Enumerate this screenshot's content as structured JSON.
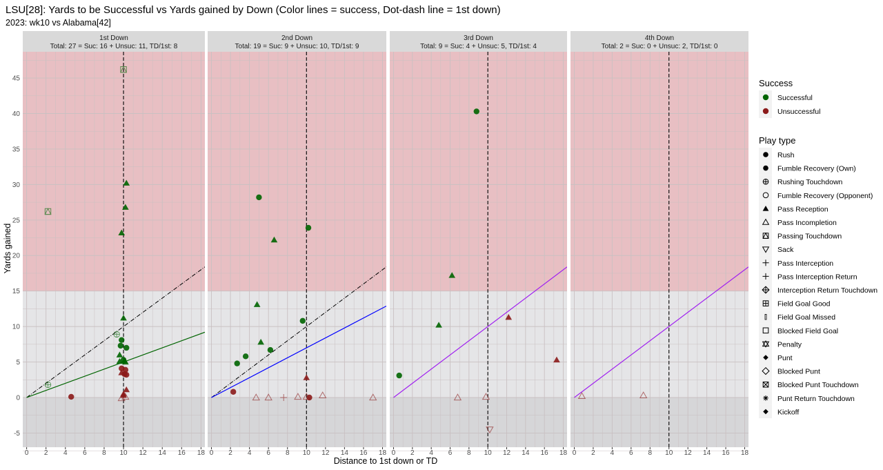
{
  "title": "LSU[28]: Yards to be Successful vs Yards gained by Down  (Color lines = success, Dot-dash line = 1st down)",
  "subtitle": "2023: wk10 vs Alabama[42]",
  "colors": {
    "successful": "#006400",
    "unsuccessful": "#8B1A1A",
    "red_zone": "#E8BFC3",
    "mid_zone": "#E5E5E7",
    "neg_zone": "#D6D6D8",
    "strip": "#D9D9D9"
  },
  "chart_data": {
    "type": "scatter",
    "xlabel": "Distance to 1st down or TD",
    "ylabel": "Yards gained",
    "xlim": [
      -0.4,
      18.4
    ],
    "ylim": [
      -7,
      48.7
    ],
    "x_ticks": [
      0,
      2,
      4,
      6,
      8,
      10,
      12,
      14,
      16,
      18
    ],
    "y_ticks": [
      -5,
      0,
      5,
      10,
      15,
      20,
      25,
      30,
      35,
      40,
      45
    ],
    "grid": true,
    "first_down_line_x": 10,
    "zones": [
      {
        "from": 15,
        "to": 48.7,
        "color": "red_zone"
      },
      {
        "from": 0,
        "to": 15,
        "color": "mid_zone"
      },
      {
        "from": -7,
        "to": 0,
        "color": "neg_zone"
      }
    ],
    "panels": [
      {
        "label": "1st Down",
        "summary": "Total: 27 = Suc: 16 + Unsuc: 11, TD/1st: 8",
        "success_line": {
          "slope": 0.5,
          "color": "#006400"
        },
        "dotdash": true,
        "points": [
          {
            "x": 2.2,
            "y": 26.2,
            "s": "Successful",
            "t": "Passing Touchdown"
          },
          {
            "x": 10,
            "y": 46.2,
            "s": "Successful",
            "t": "Passing Touchdown"
          },
          {
            "x": 10.3,
            "y": 30.2,
            "s": "Successful",
            "t": "Pass Reception"
          },
          {
            "x": 10.2,
            "y": 26.8,
            "s": "Successful",
            "t": "Pass Reception"
          },
          {
            "x": 9.8,
            "y": 23.2,
            "s": "Successful",
            "t": "Pass Reception"
          },
          {
            "x": 10,
            "y": 11.2,
            "s": "Successful",
            "t": "Pass Reception"
          },
          {
            "x": 9.6,
            "y": 6.0,
            "s": "Successful",
            "t": "Pass Reception"
          },
          {
            "x": 9.6,
            "y": 5.1,
            "s": "Successful",
            "t": "Pass Reception"
          },
          {
            "x": 10.1,
            "y": 5.2,
            "s": "Successful",
            "t": "Pass Reception"
          },
          {
            "x": 10.2,
            "y": 5.0,
            "s": "Successful",
            "t": "Pass Reception"
          },
          {
            "x": 9.8,
            "y": 8.1,
            "s": "Successful",
            "t": "Rush"
          },
          {
            "x": 9.7,
            "y": 7.3,
            "s": "Successful",
            "t": "Rush"
          },
          {
            "x": 10.3,
            "y": 7.0,
            "s": "Successful",
            "t": "Rush"
          },
          {
            "x": 10,
            "y": 5.3,
            "s": "Successful",
            "t": "Rush"
          },
          {
            "x": 2.2,
            "y": 1.8,
            "s": "Successful",
            "t": "Rushing Touchdown"
          },
          {
            "x": 9.3,
            "y": 8.9,
            "s": "Successful",
            "t": "Rushing Touchdown"
          },
          {
            "x": 4.6,
            "y": 0.1,
            "s": "Unsuccessful",
            "t": "Rush"
          },
          {
            "x": 9.8,
            "y": 4.1,
            "s": "Unsuccessful",
            "t": "Rush"
          },
          {
            "x": 10.2,
            "y": 3.9,
            "s": "Unsuccessful",
            "t": "Rush"
          },
          {
            "x": 10.3,
            "y": 3.2,
            "s": "Unsuccessful",
            "t": "Rush"
          },
          {
            "x": 10.1,
            "y": 3.3,
            "s": "Unsuccessful",
            "t": "Rush"
          },
          {
            "x": 9.8,
            "y": 3.5,
            "s": "Unsuccessful",
            "t": "Pass Reception"
          },
          {
            "x": 10.3,
            "y": 1.1,
            "s": "Unsuccessful",
            "t": "Pass Reception"
          },
          {
            "x": 10,
            "y": 0.5,
            "s": "Unsuccessful",
            "t": "Pass Reception"
          },
          {
            "x": 10,
            "y": 0.3,
            "s": "Unsuccessful",
            "t": "Pass Reception"
          },
          {
            "x": 9.8,
            "y": -0.1,
            "s": "Unsuccessful",
            "t": "Pass Incompletion"
          },
          {
            "x": 10.2,
            "y": 0.1,
            "s": "Unsuccessful",
            "t": "Pass Incompletion"
          }
        ]
      },
      {
        "label": "2nd Down",
        "summary": "Total: 19 = Suc: 9 + Unsuc: 10, TD/1st: 9",
        "success_line": {
          "slope": 0.7,
          "color": "#0000FF"
        },
        "dotdash": true,
        "points": [
          {
            "x": 5,
            "y": 28.2,
            "s": "Successful",
            "t": "Rush"
          },
          {
            "x": 10.2,
            "y": 23.9,
            "s": "Successful",
            "t": "Rush"
          },
          {
            "x": 9.6,
            "y": 10.8,
            "s": "Successful",
            "t": "Rush"
          },
          {
            "x": 6.2,
            "y": 6.7,
            "s": "Successful",
            "t": "Rush"
          },
          {
            "x": 3.6,
            "y": 5.8,
            "s": "Successful",
            "t": "Rush"
          },
          {
            "x": 2.7,
            "y": 4.8,
            "s": "Successful",
            "t": "Rush"
          },
          {
            "x": 6.6,
            "y": 22.2,
            "s": "Successful",
            "t": "Pass Reception"
          },
          {
            "x": 4.8,
            "y": 13.1,
            "s": "Successful",
            "t": "Pass Reception"
          },
          {
            "x": 5.2,
            "y": 7.8,
            "s": "Successful",
            "t": "Pass Reception"
          },
          {
            "x": 2.3,
            "y": 0.8,
            "s": "Unsuccessful",
            "t": "Rush"
          },
          {
            "x": 10.3,
            "y": 0.0,
            "s": "Unsuccessful",
            "t": "Rush"
          },
          {
            "x": 10,
            "y": 2.8,
            "s": "Unsuccessful",
            "t": "Pass Reception"
          },
          {
            "x": 4.7,
            "y": 0.0,
            "s": "Unsuccessful",
            "t": "Pass Incompletion"
          },
          {
            "x": 6.0,
            "y": 0.0,
            "s": "Unsuccessful",
            "t": "Pass Incompletion"
          },
          {
            "x": 9.1,
            "y": 0.1,
            "s": "Unsuccessful",
            "t": "Pass Incompletion"
          },
          {
            "x": 10,
            "y": 0.1,
            "s": "Unsuccessful",
            "t": "Pass Incompletion"
          },
          {
            "x": 11.7,
            "y": 0.3,
            "s": "Unsuccessful",
            "t": "Pass Incompletion"
          },
          {
            "x": 17,
            "y": 0.0,
            "s": "Unsuccessful",
            "t": "Pass Incompletion"
          },
          {
            "x": 7.6,
            "y": 0.0,
            "s": "Unsuccessful",
            "t": "Pass Interception"
          }
        ]
      },
      {
        "label": "3rd Down",
        "summary": "Total: 9 = Suc: 4 + Unsuc: 5, TD/1st: 4",
        "success_line": {
          "slope": 1.0,
          "color": "#A020F0"
        },
        "dotdash": false,
        "points": [
          {
            "x": 8.8,
            "y": 40.3,
            "s": "Successful",
            "t": "Rush"
          },
          {
            "x": 0.6,
            "y": 3.1,
            "s": "Successful",
            "t": "Rush"
          },
          {
            "x": 6.2,
            "y": 17.2,
            "s": "Successful",
            "t": "Pass Reception"
          },
          {
            "x": 4.8,
            "y": 10.2,
            "s": "Successful",
            "t": "Pass Reception"
          },
          {
            "x": 12.2,
            "y": 11.3,
            "s": "Unsuccessful",
            "t": "Pass Reception"
          },
          {
            "x": 17.3,
            "y": 5.3,
            "s": "Unsuccessful",
            "t": "Pass Reception"
          },
          {
            "x": 6.8,
            "y": 0.0,
            "s": "Unsuccessful",
            "t": "Pass Incompletion"
          },
          {
            "x": 9.8,
            "y": 0.1,
            "s": "Unsuccessful",
            "t": "Pass Incompletion"
          },
          {
            "x": 10.2,
            "y": -4.5,
            "s": "Unsuccessful",
            "t": "Sack"
          }
        ]
      },
      {
        "label": "4th Down",
        "summary": "Total: 2 = Suc: 0 + Unsuc: 2, TD/1st: 0",
        "success_line": {
          "slope": 1.0,
          "color": "#A020F0"
        },
        "dotdash": false,
        "points": [
          {
            "x": 0.8,
            "y": 0.2,
            "s": "Unsuccessful",
            "t": "Pass Incompletion"
          },
          {
            "x": 7.3,
            "y": 0.3,
            "s": "Unsuccessful",
            "t": "Pass Incompletion"
          }
        ]
      }
    ],
    "legend": {
      "placement": "right",
      "success_title": "Success",
      "success_items": [
        "Successful",
        "Unsuccessful"
      ],
      "type_title": "Play type",
      "type_items": [
        {
          "label": "Rush",
          "shape": "circle"
        },
        {
          "label": "Fumble Recovery (Own)",
          "shape": "circle"
        },
        {
          "label": "Rushing Touchdown",
          "shape": "circle-plus"
        },
        {
          "label": "Fumble Recovery (Opponent)",
          "shape": "circle-open"
        },
        {
          "label": "Pass Reception",
          "shape": "triangle"
        },
        {
          "label": "Pass Incompletion",
          "shape": "triangle-open"
        },
        {
          "label": "Passing Touchdown",
          "shape": "square-triangle"
        },
        {
          "label": "Sack",
          "shape": "triangle-down-open"
        },
        {
          "label": "Pass Interception",
          "shape": "plus"
        },
        {
          "label": "Pass Interception Return",
          "shape": "plus"
        },
        {
          "label": "Interception Return Touchdown",
          "shape": "diamond-plus"
        },
        {
          "label": "Field Goal Good",
          "shape": "square-plus"
        },
        {
          "label": "Field Goal Missed",
          "shape": "bar"
        },
        {
          "label": "Blocked Field Goal",
          "shape": "square-open"
        },
        {
          "label": "Penalty",
          "shape": "star"
        },
        {
          "label": "Punt",
          "shape": "diamond"
        },
        {
          "label": "Blocked Punt",
          "shape": "diamond-open"
        },
        {
          "label": "Blocked Punt Touchdown",
          "shape": "square-x"
        },
        {
          "label": "Punt Return Touchdown",
          "shape": "asterisk"
        },
        {
          "label": "Kickoff",
          "shape": "diamond"
        }
      ]
    }
  }
}
